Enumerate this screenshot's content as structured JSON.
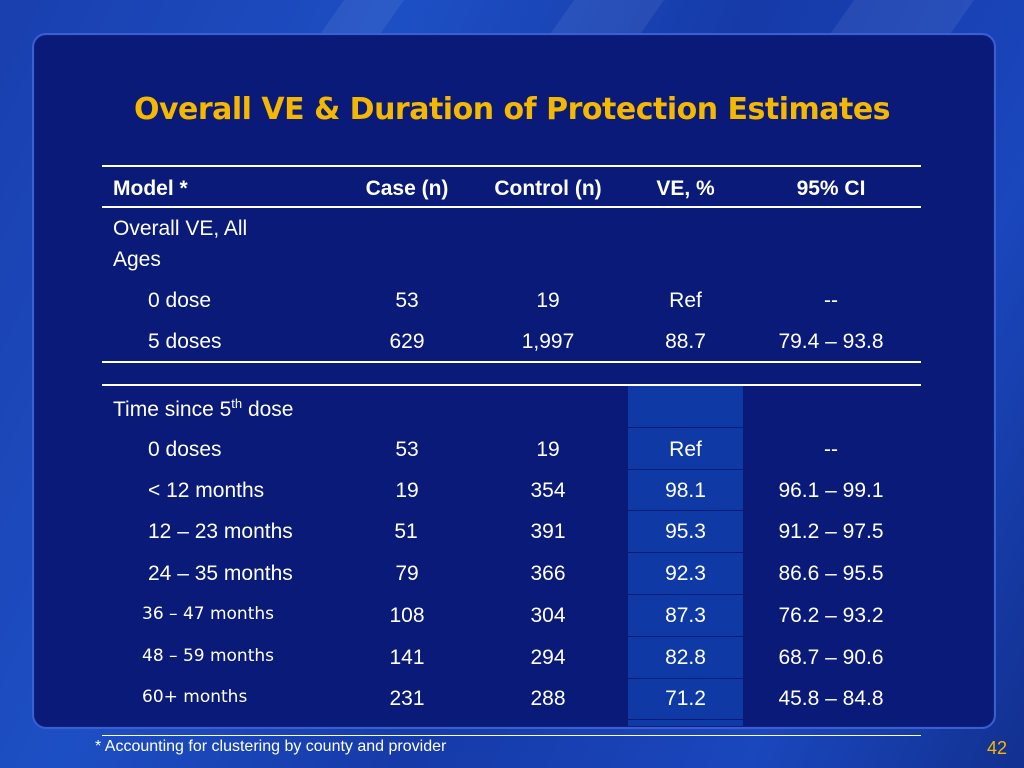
{
  "slide": {
    "title": "Overall VE & Duration of Protection Estimates",
    "footnote": "* Accounting for clustering by county and provider",
    "page_number": "42"
  },
  "table": {
    "headers": [
      "Model *",
      "Case (n)",
      "Control (n)",
      "VE, %",
      "95% CI"
    ],
    "section1_label_line1": "Overall VE, All",
    "section1_label_line2": "Ages",
    "section1_rows": [
      {
        "label": "0 dose",
        "case": "53",
        "control": "19",
        "ve": "Ref",
        "ci": "--"
      },
      {
        "label": "5 doses",
        "case": "629",
        "control": "1,997",
        "ve": "88.7",
        "ci": "79.4 – 93.8"
      }
    ],
    "section2_label_pre": "Time since 5",
    "section2_label_sup": "th",
    "section2_label_post": " dose",
    "section2_rows": [
      {
        "label": "0 doses",
        "case": "53",
        "control": "19",
        "ve": "Ref",
        "ci": "--"
      },
      {
        "label": "< 12 months",
        "case": "19",
        "control": "354",
        "ve": "98.1",
        "ci": "96.1 – 99.1"
      },
      {
        "label": "12 – 23 months",
        "case": "51",
        "control": "391",
        "ve": "95.3",
        "ci": "91.2 – 97.5"
      },
      {
        "label": "24 – 35 months",
        "case": "79",
        "control": "366",
        "ve": "92.3",
        "ci": "86.6 – 95.5"
      },
      {
        "label": "36 – 47 months",
        "case": "108",
        "control": "304",
        "ve": "87.3",
        "ci": "76.2 – 93.2"
      },
      {
        "label": "48 – 59 months",
        "case": "141",
        "control": "294",
        "ve": "82.8",
        "ci": "68.7 – 90.6"
      },
      {
        "label": "60+ months",
        "case": "231",
        "control": "288",
        "ve": "71.2",
        "ci": "45.8 – 84.8"
      }
    ]
  }
}
